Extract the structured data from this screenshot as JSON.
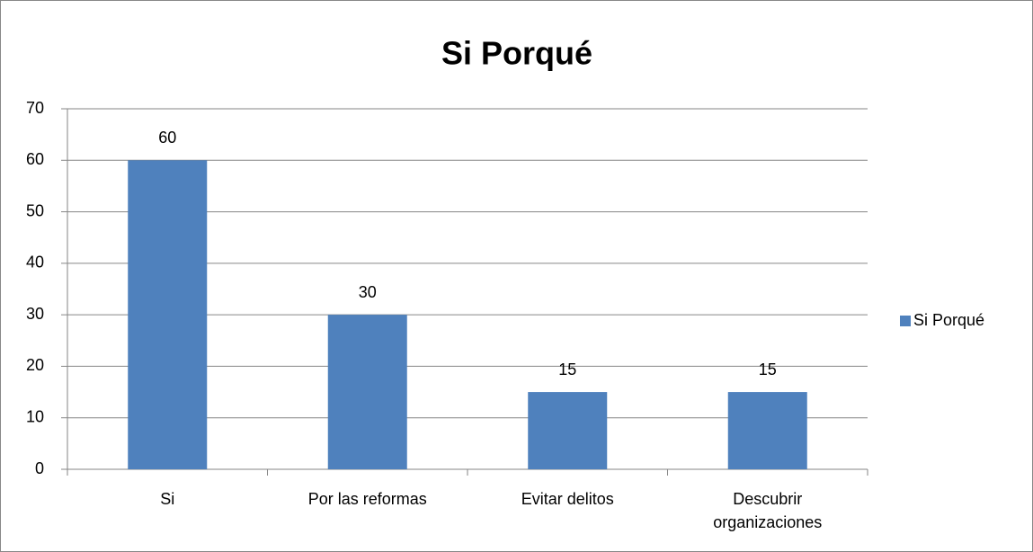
{
  "chart_data": {
    "type": "bar",
    "title": "Si Porqué",
    "categories": [
      "Si",
      "Por las reformas",
      "Evitar delitos",
      "Descubrir organizaciones"
    ],
    "series": [
      {
        "name": "Si Porqué",
        "color": "#4f81bd",
        "values": [
          60,
          30,
          15,
          15
        ]
      }
    ],
    "ylim": [
      0,
      70
    ],
    "yticks": [
      0,
      10,
      20,
      30,
      40,
      50,
      60,
      70
    ],
    "grid": true,
    "legend": "right"
  }
}
